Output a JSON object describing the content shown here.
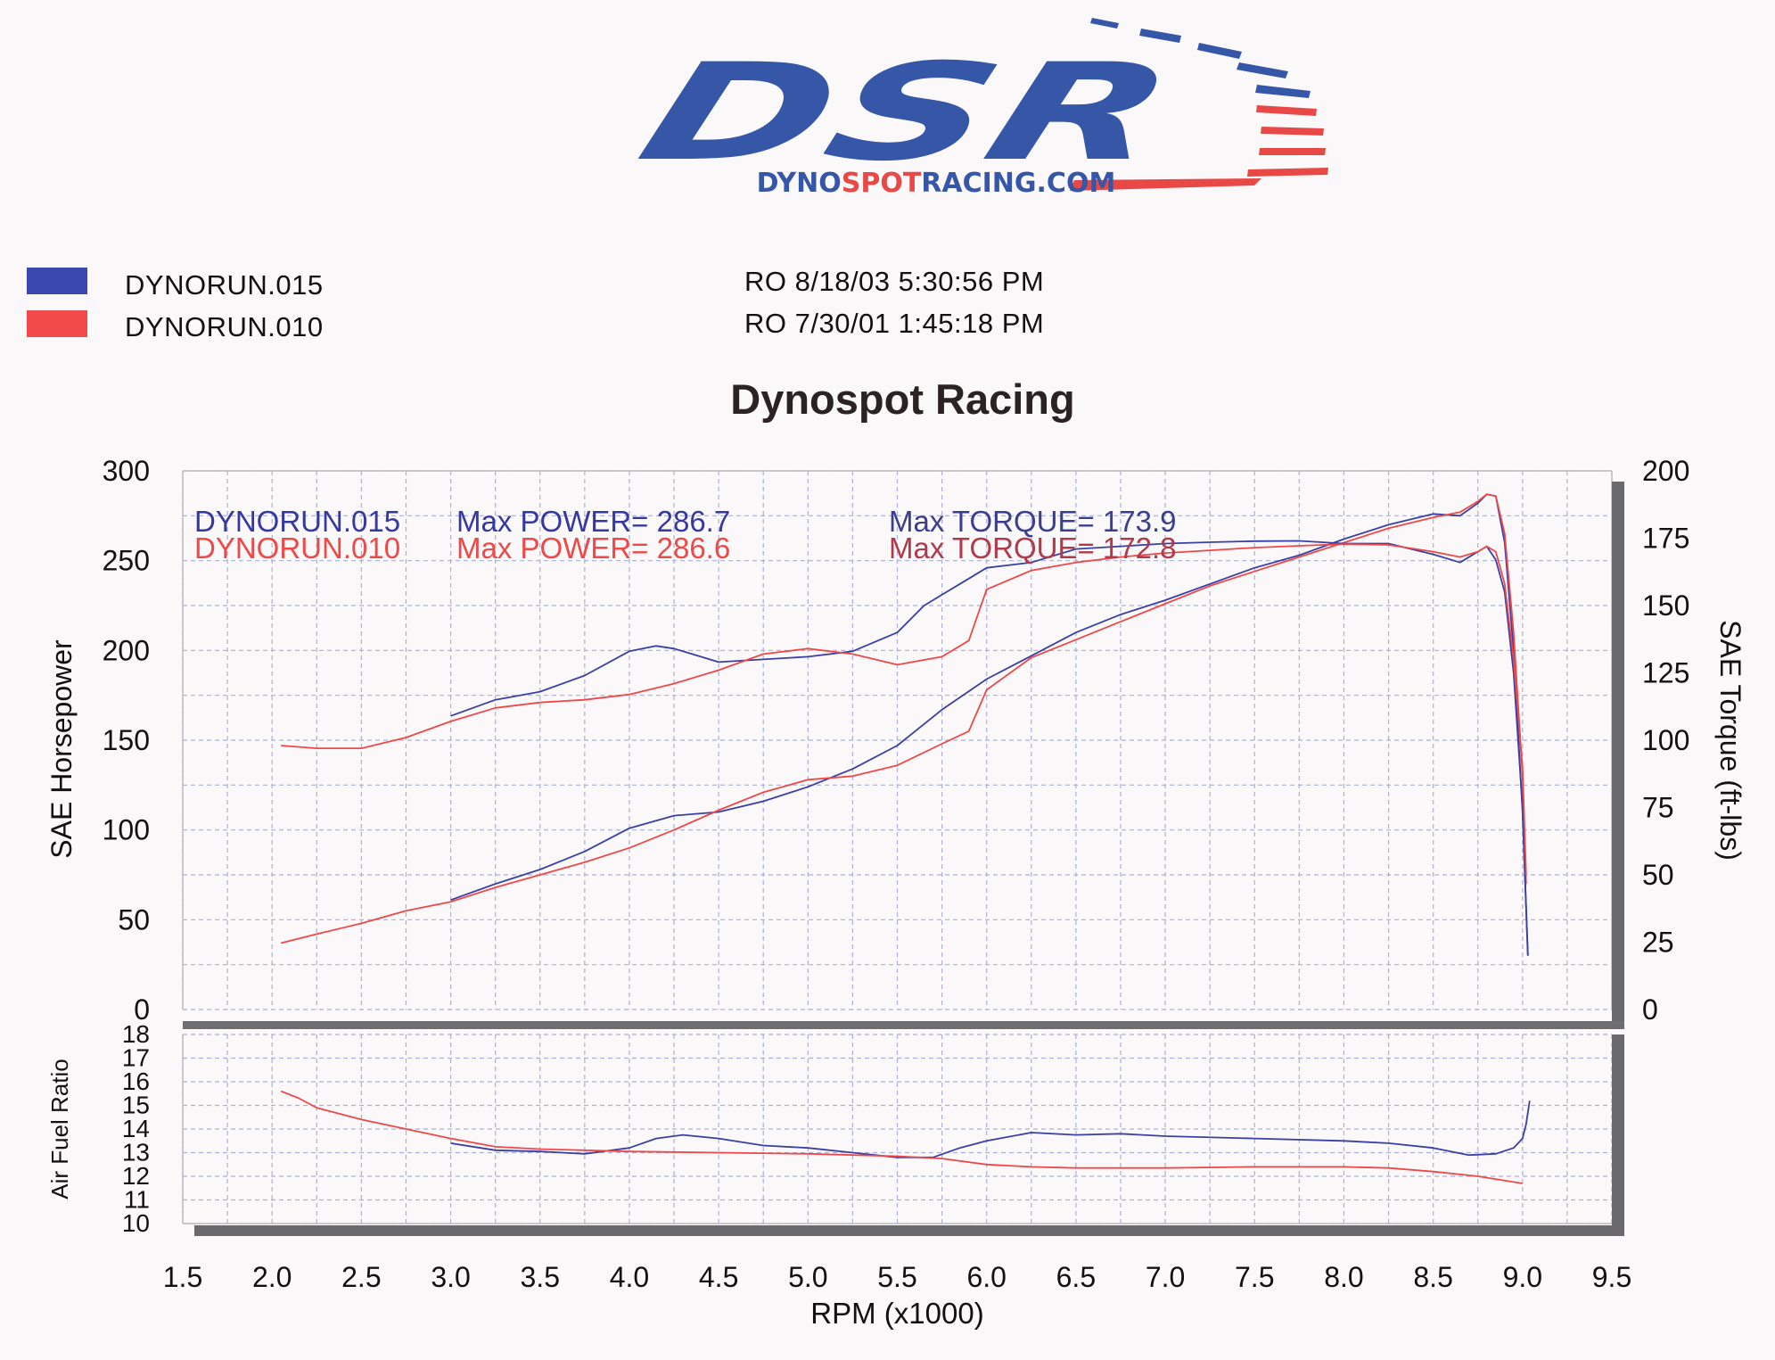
{
  "brand": {
    "logo_text": "DSR",
    "website": "DYNOSPOTRACING.COM",
    "website_parts": [
      "DYNO",
      "SPOT",
      "R",
      "ACING.COM"
    ],
    "blue": "#3656a8",
    "red": "#e84846"
  },
  "legend": {
    "runs": [
      {
        "name": "DYNORUN.015",
        "datetime": "RO  8/18/03 5:30:56 PM",
        "color": "#3a3fa6"
      },
      {
        "name": "DYNORUN.010",
        "datetime": "RO  7/30/01 1:45:18 PM",
        "color": "#f04848"
      }
    ]
  },
  "chart_data": {
    "type": "line",
    "title": "Dynospot Racing",
    "xlabel": "RPM (x1000)",
    "ylabel": "SAE Horsepower",
    "y2label": "SAE Torque (ft-lbs)",
    "y3label": "Air Fuel Ratio",
    "xlim": [
      1.5,
      9.5
    ],
    "ylim": [
      0,
      300
    ],
    "y2lim": [
      0,
      200
    ],
    "y3lim": [
      10,
      18
    ],
    "x_ticks": [
      "1.5",
      "2.0",
      "2.5",
      "3.0",
      "3.5",
      "4.0",
      "4.5",
      "5.0",
      "5.5",
      "6.0",
      "6.5",
      "7.0",
      "7.5",
      "8.0",
      "8.5",
      "9.0",
      "9.5"
    ],
    "y_ticks": [
      "0",
      "50",
      "100",
      "150",
      "200",
      "250",
      "300"
    ],
    "y2_ticks": [
      "0",
      "25",
      "50",
      "75",
      "100",
      "125",
      "150",
      "175",
      "200"
    ],
    "y3_ticks": [
      "10",
      "11",
      "12",
      "13",
      "14",
      "15",
      "16",
      "17",
      "18"
    ],
    "annotations": [
      {
        "run": "DYNORUN.015",
        "power_label": "Max POWER= 286.7",
        "torque_label": "Max TORQUE= 173.9"
      },
      {
        "run": "DYNORUN.010",
        "power_label": "Max POWER= 286.6",
        "torque_label": "Max TORQUE= 172.8"
      }
    ],
    "series": [
      {
        "name": "DYNORUN.015 Horsepower",
        "run": 0,
        "axis": "hp",
        "x": [
          3.0,
          3.25,
          3.5,
          3.75,
          4.0,
          4.25,
          4.5,
          4.75,
          5.0,
          5.25,
          5.5,
          5.75,
          6.0,
          6.25,
          6.5,
          6.75,
          7.0,
          7.25,
          7.5,
          7.75,
          8.0,
          8.25,
          8.5,
          8.65,
          8.75,
          8.8,
          8.85,
          8.9,
          8.95,
          9.0,
          9.03
        ],
        "y": [
          61,
          70,
          78,
          88,
          101,
          108,
          110,
          116,
          124,
          134,
          147,
          167,
          184,
          197,
          210,
          220,
          228,
          237,
          246,
          253,
          262,
          270,
          276,
          275,
          282,
          287,
          286,
          260,
          200,
          110,
          30
        ]
      },
      {
        "name": "DYNORUN.010 Horsepower",
        "run": 1,
        "axis": "hp",
        "x": [
          2.05,
          2.25,
          2.5,
          2.75,
          3.0,
          3.25,
          3.5,
          3.75,
          4.0,
          4.25,
          4.5,
          4.75,
          5.0,
          5.25,
          5.5,
          5.75,
          5.9,
          6.0,
          6.25,
          6.5,
          6.75,
          7.0,
          7.25,
          7.5,
          7.75,
          8.0,
          8.25,
          8.5,
          8.65,
          8.75,
          8.8,
          8.85,
          8.9,
          8.95,
          9.0,
          9.02
        ],
        "y": [
          37,
          42,
          48,
          55,
          60,
          68,
          75,
          82,
          90,
          100,
          111,
          121,
          128,
          130,
          136,
          148,
          155,
          178,
          196,
          206,
          216,
          226,
          236,
          244,
          252,
          260,
          268,
          274,
          277,
          283,
          287,
          286,
          265,
          210,
          130,
          70
        ]
      },
      {
        "name": "DYNORUN.015 Torque",
        "run": 0,
        "axis": "tq",
        "x": [
          3.0,
          3.25,
          3.5,
          3.75,
          4.0,
          4.15,
          4.25,
          4.5,
          4.75,
          5.0,
          5.25,
          5.5,
          5.65,
          5.75,
          5.9,
          6.0,
          6.25,
          6.5,
          6.75,
          7.0,
          7.25,
          7.5,
          7.75,
          8.0,
          8.25,
          8.5,
          8.65,
          8.75,
          8.8,
          8.85,
          8.9,
          8.95,
          9.0,
          9.03
        ],
        "y": [
          109,
          115,
          118,
          124,
          133,
          135,
          134,
          129,
          130,
          131,
          133,
          140,
          150,
          154,
          160,
          164,
          166,
          171,
          172,
          173,
          173.5,
          173.9,
          174,
          173,
          173,
          169,
          166,
          170,
          172,
          167,
          155,
          125,
          75,
          20
        ]
      },
      {
        "name": "DYNORUN.010 Torque",
        "run": 1,
        "axis": "tq",
        "x": [
          2.05,
          2.25,
          2.5,
          2.75,
          3.0,
          3.25,
          3.5,
          3.75,
          4.0,
          4.25,
          4.5,
          4.75,
          5.0,
          5.25,
          5.5,
          5.75,
          5.9,
          6.0,
          6.25,
          6.5,
          6.75,
          7.0,
          7.25,
          7.5,
          7.75,
          8.0,
          8.25,
          8.5,
          8.65,
          8.75,
          8.8,
          8.85,
          8.9,
          8.95,
          9.0,
          9.02
        ],
        "y": [
          98,
          97,
          97,
          101,
          107,
          112,
          114,
          115,
          117,
          121,
          126,
          132,
          134,
          132,
          128,
          131,
          137,
          156,
          163,
          166,
          168,
          169.5,
          170.5,
          171.5,
          172.2,
          172.8,
          172.5,
          170,
          168,
          170,
          172,
          170,
          158,
          130,
          90,
          50
        ]
      },
      {
        "name": "DYNORUN.015 Air Fuel Ratio",
        "run": 0,
        "axis": "afr",
        "x": [
          3.0,
          3.25,
          3.5,
          3.75,
          4.0,
          4.15,
          4.3,
          4.5,
          4.75,
          5.0,
          5.25,
          5.5,
          5.7,
          5.85,
          6.0,
          6.25,
          6.5,
          6.75,
          7.0,
          7.5,
          8.0,
          8.25,
          8.5,
          8.7,
          8.85,
          8.95,
          9.0,
          9.02,
          9.04
        ],
        "y": [
          13.4,
          13.1,
          13.05,
          12.95,
          13.2,
          13.6,
          13.75,
          13.6,
          13.3,
          13.2,
          13.0,
          12.8,
          12.8,
          13.2,
          13.5,
          13.85,
          13.75,
          13.8,
          13.7,
          13.6,
          13.5,
          13.4,
          13.2,
          12.9,
          12.95,
          13.2,
          13.6,
          14.2,
          15.2
        ]
      },
      {
        "name": "DYNORUN.010 Air Fuel Ratio",
        "run": 1,
        "axis": "afr",
        "x": [
          2.05,
          2.15,
          2.25,
          2.5,
          2.75,
          3.0,
          3.25,
          3.5,
          3.75,
          4.0,
          4.5,
          5.0,
          5.5,
          5.75,
          6.0,
          6.25,
          6.5,
          7.0,
          7.5,
          8.0,
          8.25,
          8.5,
          8.75,
          9.0
        ],
        "y": [
          15.6,
          15.3,
          14.9,
          14.4,
          14.0,
          13.6,
          13.25,
          13.15,
          13.1,
          13.05,
          13.0,
          12.95,
          12.85,
          12.75,
          12.5,
          12.4,
          12.35,
          12.35,
          12.4,
          12.4,
          12.35,
          12.2,
          12.0,
          11.7
        ]
      }
    ]
  }
}
